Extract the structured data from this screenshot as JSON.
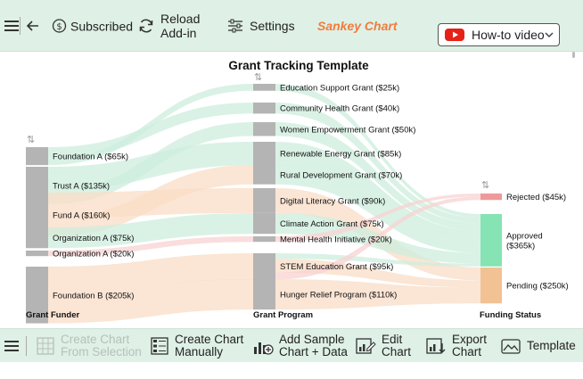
{
  "toolbar": {
    "subscribed_label": "Subscribed",
    "reload_line1": "Reload",
    "reload_line2": "Add-in",
    "settings_label": "Settings",
    "brand": "Sankey Chart",
    "howto_label": "How-to video"
  },
  "chart": {
    "title": "Grant Tracking Template",
    "columns": [
      "Grant Funder",
      "Grant Program",
      "Funding Status"
    ],
    "colors": {
      "node": "#b4b4b4",
      "link_green": "#cdeedd",
      "link_orange": "#f9dcc6",
      "link_red": "#f8d2d2",
      "rejected": "#ef9a9a",
      "approved": "#86e3b3",
      "pending": "#f2c294"
    }
  },
  "chart_data": {
    "type": "sankey",
    "title": "Grant Tracking Template",
    "funders": [
      {
        "name": "Foundation A",
        "value": 65,
        "label": "Foundation A ($65k)"
      },
      {
        "name": "Trust A",
        "value": 135,
        "label": "Trust A ($135k)"
      },
      {
        "name": "Fund A",
        "value": 160,
        "label": "Fund A ($160k)"
      },
      {
        "name": "Organization A",
        "value": 75,
        "label": "Organization A ($75k)"
      },
      {
        "name": "Organization A",
        "value": 20,
        "label": "Organization A ($20k)"
      },
      {
        "name": "Foundation B",
        "value": 205,
        "label": "Foundation B ($205k)"
      }
    ],
    "programs": [
      {
        "name": "Education Support Grant",
        "value": 25,
        "label": "Education Support Grant ($25k)"
      },
      {
        "name": "Community Health Grant",
        "value": 40,
        "label": "Community Health Grant ($40k)"
      },
      {
        "name": "Women Empowerment Grant",
        "value": 50,
        "label": "Women Empowerment Grant ($50k)"
      },
      {
        "name": "Renewable Energy Grant",
        "value": 85,
        "label": "Renewable Energy Grant ($85k)"
      },
      {
        "name": "Rural Development Grant",
        "value": 70,
        "label": "Rural Development Grant ($70k)"
      },
      {
        "name": "Digital Literacy Grant",
        "value": 90,
        "label": "Digital Literacy Grant ($90k)"
      },
      {
        "name": "Climate Action Grant",
        "value": 75,
        "label": "Climate Action Grant ($75k)"
      },
      {
        "name": "Mental Health Initiative",
        "value": 20,
        "label": "Mental Health Initiative ($20k)"
      },
      {
        "name": "STEM Education Grant",
        "value": 95,
        "label": "STEM Education Grant ($95k)"
      },
      {
        "name": "Hunger Relief Program",
        "value": 110,
        "label": "Hunger Relief Program ($110k)"
      }
    ],
    "statuses": [
      {
        "name": "Rejected",
        "value": 45,
        "label": "Rejected ($45k)"
      },
      {
        "name": "Approved",
        "value": 365,
        "label": "Approved ($365k)"
      },
      {
        "name": "Pending",
        "value": 250,
        "label": "Pending ($250k)"
      }
    ],
    "links": [
      {
        "from": 0,
        "to": 1,
        "value": 40
      },
      {
        "from": 0,
        "to": 0,
        "value": 25
      },
      {
        "from": 1,
        "to": 3,
        "value": 85
      },
      {
        "from": 1,
        "to": 2,
        "value": 50
      },
      {
        "from": 2,
        "to": 5,
        "value": 90
      },
      {
        "from": 2,
        "to": 4,
        "value": 70
      },
      {
        "from": 3,
        "to": 6,
        "value": 75
      },
      {
        "from": 4,
        "to": 7,
        "value": 20
      },
      {
        "from": 5,
        "to": 8,
        "value": 95
      },
      {
        "from": 5,
        "to": 9,
        "value": 110
      }
    ],
    "program_status": [
      {
        "from": 0,
        "to": 1,
        "value": 25
      },
      {
        "from": 1,
        "to": 1,
        "value": 40
      },
      {
        "from": 2,
        "to": 1,
        "value": 50
      },
      {
        "from": 3,
        "to": 1,
        "value": 85
      },
      {
        "from": 4,
        "to": 1,
        "value": 70
      },
      {
        "from": 5,
        "to": 2,
        "value": 90
      },
      {
        "from": 6,
        "to": 1,
        "value": 75
      },
      {
        "from": 7,
        "to": 0,
        "value": 20
      },
      {
        "from": 8,
        "to": 1,
        "value": 20
      },
      {
        "from": 8,
        "to": 2,
        "value": 50
      },
      {
        "from": 8,
        "to": 0,
        "value": 25
      },
      {
        "from": 9,
        "to": 2,
        "value": 110
      }
    ]
  },
  "bottom": {
    "create_from_selection_1": "Create Chart",
    "create_from_selection_2": "From Selection",
    "create_manually_1": "Create Chart",
    "create_manually_2": "Manually",
    "add_sample_1": "Add Sample",
    "add_sample_2": "Chart + Data",
    "edit_chart_1": "Edit",
    "edit_chart_2": "Chart",
    "export_chart_1": "Export",
    "export_chart_2": "Chart",
    "template_label": "Template"
  }
}
